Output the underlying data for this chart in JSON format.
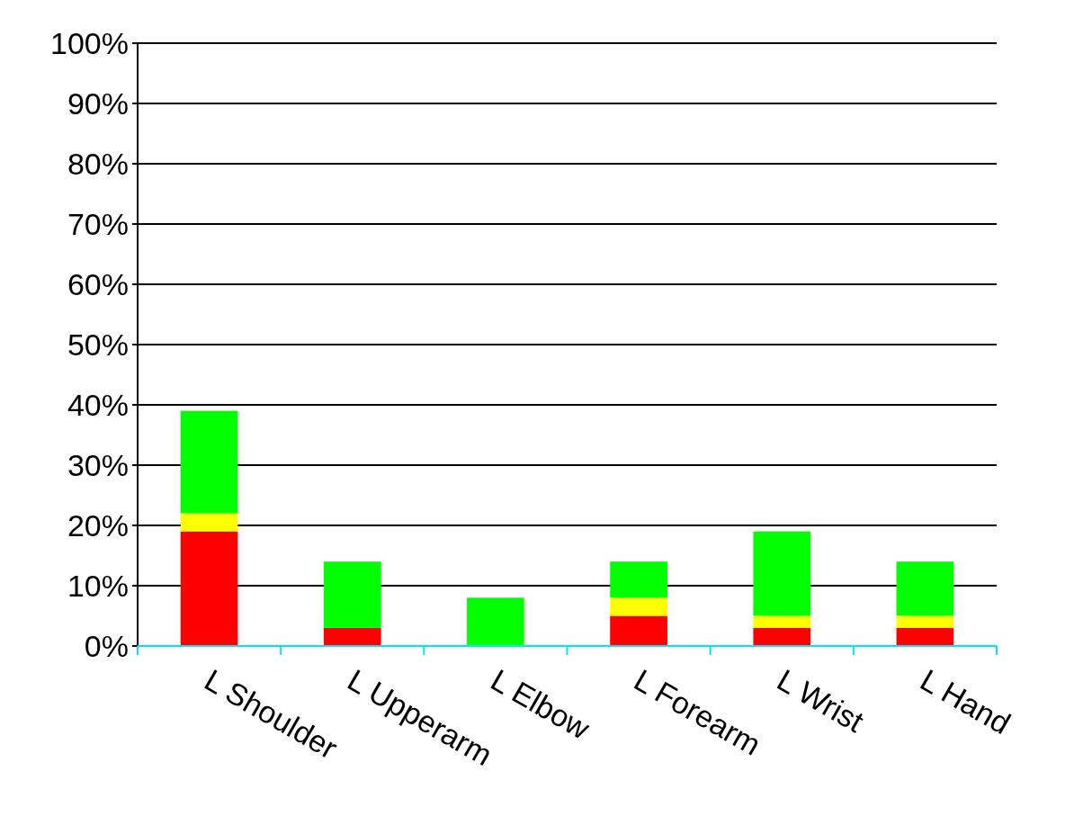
{
  "chart_data": {
    "type": "bar",
    "stacked": true,
    "categories": [
      "L Shoulder",
      "L Upperarm",
      "L Elbow",
      "L Forearm",
      "L Wrist",
      "L Hand"
    ],
    "series": [
      {
        "color": "#ff0000",
        "values": [
          19,
          3,
          0,
          5,
          3,
          3
        ]
      },
      {
        "color": "#ffff00",
        "values": [
          3,
          0,
          0,
          3,
          2,
          2
        ]
      },
      {
        "color": "#00ff00",
        "values": [
          17,
          11,
          8,
          6,
          14,
          9
        ]
      }
    ],
    "ylim": [
      0,
      100
    ],
    "yticks": [
      {
        "value": 0,
        "label": "0%"
      },
      {
        "value": 10,
        "label": "10%"
      },
      {
        "value": 20,
        "label": "20%"
      },
      {
        "value": 30,
        "label": "30%"
      },
      {
        "value": 40,
        "label": "40%"
      },
      {
        "value": 50,
        "label": "50%"
      },
      {
        "value": 60,
        "label": "60%"
      },
      {
        "value": 70,
        "label": "70%"
      },
      {
        "value": 80,
        "label": "80%"
      },
      {
        "value": 90,
        "label": "90%"
      },
      {
        "value": 100,
        "label": "100%"
      }
    ],
    "grid": "y"
  }
}
